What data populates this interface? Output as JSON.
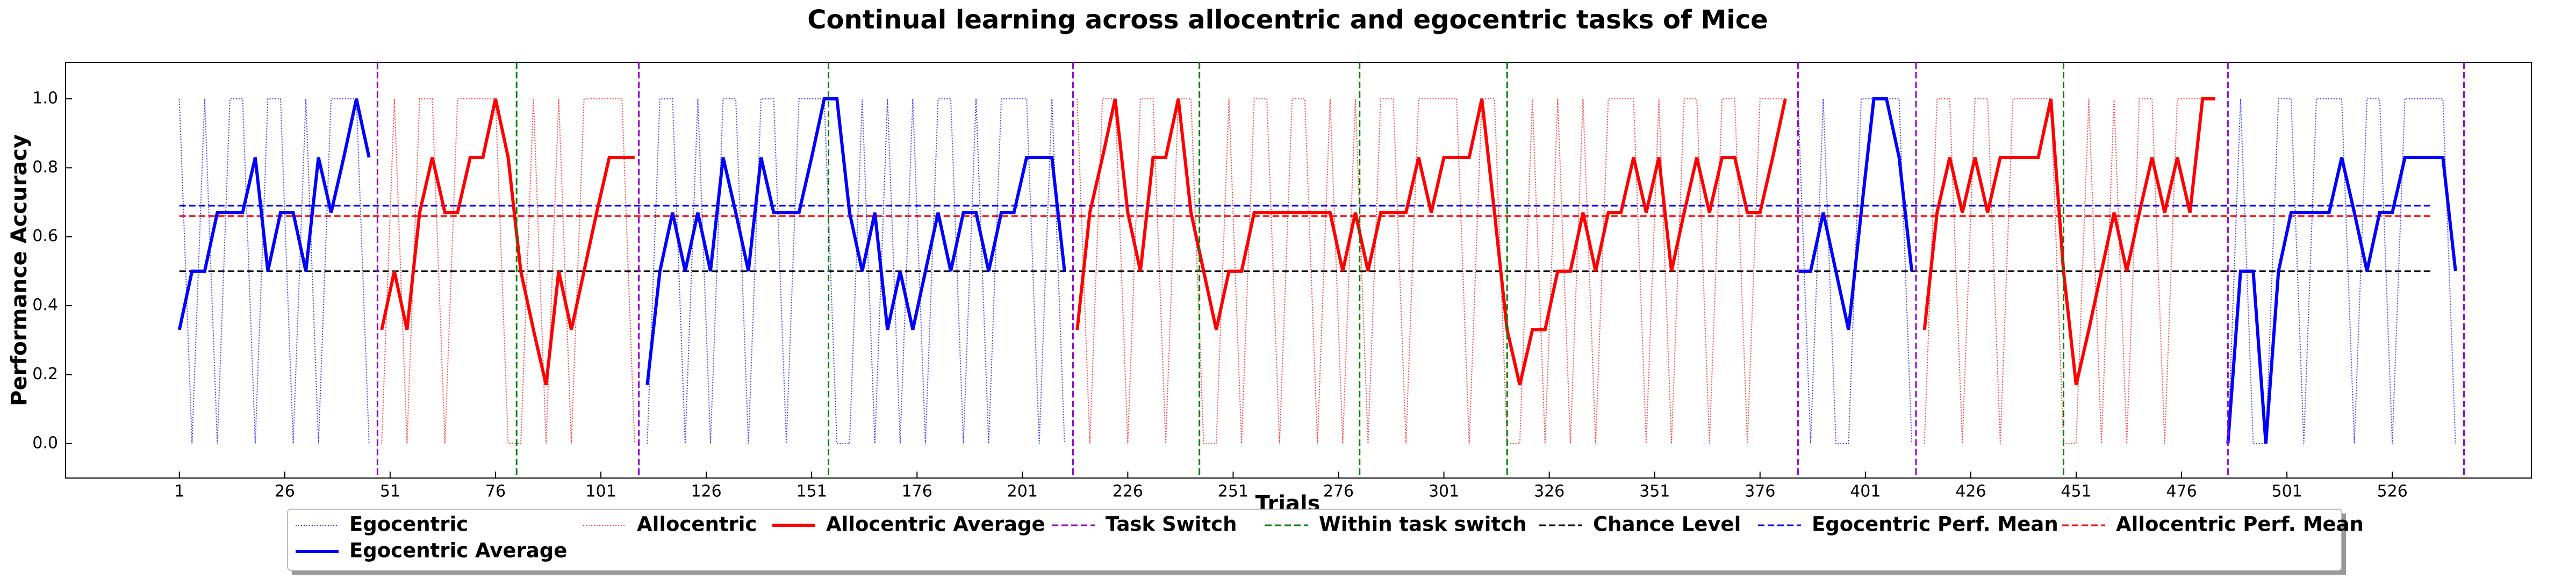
{
  "chart_data": {
    "type": "line",
    "title": "Continual learning across allocentric and egocentric tasks of Mice",
    "xlabel": "Trials",
    "ylabel": "Performance Accuracy",
    "xlim": [
      -26,
      559
    ],
    "ylim": [
      -0.1,
      1.106
    ],
    "xticks": [
      1,
      26,
      51,
      76,
      101,
      126,
      151,
      176,
      201,
      226,
      251,
      276,
      301,
      326,
      351,
      376,
      401,
      426,
      451,
      476,
      501,
      526
    ],
    "yticks": [
      {
        "value": 0,
        "label": "0.0"
      },
      {
        "value": 0.2,
        "label": "0.2"
      },
      {
        "value": 0.4,
        "label": "0.4"
      },
      {
        "value": 0.6,
        "label": "0.6"
      },
      {
        "value": 0.8,
        "label": "0.8"
      },
      {
        "value": 1,
        "label": "1.0"
      }
    ],
    "legend": "lower center",
    "x": [
      1,
      4,
      7,
      10,
      13,
      16,
      19,
      22,
      25,
      28,
      31,
      34,
      37,
      40,
      43,
      46,
      49,
      52,
      55,
      58,
      61,
      64,
      67,
      70,
      73,
      76,
      79,
      82,
      85,
      88,
      91,
      94,
      97,
      100,
      103,
      106,
      109,
      112,
      115,
      118,
      121,
      124,
      127,
      130,
      133,
      136,
      139,
      142,
      145,
      148,
      151,
      154,
      157,
      160,
      163,
      166,
      169,
      172,
      175,
      178,
      181,
      184,
      187,
      190,
      193,
      196,
      199,
      202,
      205,
      208,
      211,
      214,
      217,
      220,
      223,
      226,
      229,
      232,
      235,
      238,
      241,
      244,
      247,
      250,
      253,
      256,
      259,
      262,
      265,
      268,
      271,
      274,
      277,
      280,
      283,
      286,
      289,
      292,
      295,
      298,
      301,
      304,
      307,
      310,
      313,
      316,
      319,
      322,
      325,
      328,
      331,
      334,
      337,
      340,
      343,
      346,
      349,
      352,
      355,
      358,
      361,
      364,
      367,
      370,
      373,
      376,
      379,
      382,
      385,
      388,
      391,
      394,
      397,
      400,
      403,
      406,
      409,
      412,
      415,
      418,
      421,
      424,
      427,
      430,
      433,
      436,
      439,
      442,
      445,
      448,
      451,
      454,
      457,
      460,
      463,
      466,
      469,
      472,
      475,
      478,
      481,
      484,
      487,
      490,
      493,
      496,
      499,
      502,
      505,
      508,
      511,
      514,
      517,
      520,
      523,
      526,
      529,
      532,
      535,
      538,
      541
    ],
    "series": [
      {
        "name": "Egocentric",
        "color": "#0000ff",
        "style": "dotted",
        "values": [
          1,
          0,
          1,
          0,
          1,
          1,
          0,
          1,
          1,
          0,
          1,
          0,
          1,
          1,
          1,
          0,
          null,
          null,
          null,
          null,
          null,
          null,
          null,
          null,
          null,
          null,
          null,
          null,
          null,
          null,
          null,
          null,
          null,
          null,
          null,
          null,
          null,
          0,
          1,
          1,
          0,
          1,
          0,
          1,
          1,
          0,
          1,
          1,
          0,
          1,
          1,
          1,
          0,
          0,
          1,
          0,
          1,
          0,
          1,
          0,
          1,
          1,
          0,
          1,
          0,
          1,
          1,
          1,
          0,
          1,
          0,
          null,
          null,
          null,
          null,
          null,
          null,
          null,
          null,
          null,
          null,
          null,
          null,
          null,
          null,
          null,
          null,
          null,
          null,
          null,
          null,
          null,
          null,
          null,
          null,
          null,
          null,
          null,
          null,
          null,
          null,
          null,
          null,
          null,
          null,
          null,
          null,
          null,
          null,
          null,
          null,
          null,
          null,
          null,
          null,
          null,
          null,
          null,
          null,
          null,
          null,
          null,
          null,
          null,
          null,
          null,
          null,
          null,
          1,
          0,
          1,
          0,
          0,
          1,
          1,
          1,
          1,
          0,
          null,
          null,
          null,
          null,
          null,
          null,
          null,
          null,
          null,
          null,
          null,
          null,
          null,
          null,
          null,
          null,
          null,
          null,
          null,
          null,
          null,
          null,
          null,
          null,
          0,
          1,
          0,
          0,
          1,
          1,
          0,
          1,
          1,
          1,
          0,
          1,
          1,
          0,
          1,
          1,
          1,
          1,
          0
        ]
      },
      {
        "name": "Egocentric Average",
        "color": "#0000ff",
        "style": "solid",
        "values": [
          0.33,
          0.5,
          0.5,
          0.67,
          0.67,
          0.67,
          0.83,
          0.5,
          0.67,
          0.67,
          0.5,
          0.83,
          0.67,
          0.83,
          1.0,
          0.83,
          null,
          null,
          null,
          null,
          null,
          null,
          null,
          null,
          null,
          null,
          null,
          null,
          null,
          null,
          null,
          null,
          null,
          null,
          null,
          null,
          null,
          0.17,
          0.5,
          0.67,
          0.5,
          0.67,
          0.5,
          0.83,
          0.67,
          0.5,
          0.83,
          0.67,
          0.67,
          0.67,
          0.83,
          1.0,
          1.0,
          0.67,
          0.5,
          0.67,
          0.33,
          0.5,
          0.33,
          0.5,
          0.67,
          0.5,
          0.67,
          0.67,
          0.5,
          0.67,
          0.67,
          0.83,
          0.83,
          0.83,
          0.5,
          null,
          null,
          null,
          null,
          null,
          null,
          null,
          null,
          null,
          null,
          null,
          null,
          null,
          null,
          null,
          null,
          null,
          null,
          null,
          null,
          null,
          null,
          null,
          null,
          null,
          null,
          null,
          null,
          null,
          null,
          null,
          null,
          null,
          null,
          null,
          null,
          null,
          null,
          null,
          null,
          null,
          null,
          null,
          null,
          null,
          null,
          null,
          null,
          null,
          null,
          null,
          null,
          null,
          null,
          null,
          null,
          null,
          0.5,
          0.5,
          0.67,
          0.5,
          0.33,
          0.67,
          1.0,
          1.0,
          0.83,
          0.5,
          null,
          null,
          null,
          null,
          null,
          null,
          null,
          null,
          null,
          null,
          null,
          null,
          null,
          null,
          null,
          null,
          null,
          null,
          null,
          null,
          null,
          null,
          null,
          null,
          0.0,
          0.5,
          0.5,
          0.0,
          0.5,
          0.67,
          0.67,
          0.67,
          0.67,
          0.83,
          0.67,
          0.5,
          0.67,
          0.67,
          0.83,
          0.83,
          0.83,
          0.83,
          0.5
        ]
      },
      {
        "name": "Allocentric",
        "color": "#ff0000",
        "style": "dotted",
        "values": [
          null,
          null,
          null,
          null,
          null,
          null,
          null,
          null,
          null,
          null,
          null,
          null,
          null,
          null,
          null,
          null,
          0,
          1,
          0,
          1,
          1,
          0,
          1,
          1,
          1,
          1,
          0,
          0,
          1,
          0,
          1,
          0,
          1,
          1,
          1,
          1,
          0,
          null,
          null,
          null,
          null,
          null,
          null,
          null,
          null,
          null,
          null,
          null,
          null,
          null,
          null,
          null,
          null,
          null,
          null,
          null,
          null,
          null,
          null,
          null,
          null,
          null,
          null,
          null,
          null,
          null,
          null,
          null,
          null,
          null,
          null,
          1,
          0,
          1,
          1,
          0,
          1,
          1,
          0,
          1,
          1,
          0,
          0,
          1,
          0,
          1,
          1,
          0,
          1,
          1,
          0,
          1,
          0,
          1,
          0,
          1,
          1,
          0,
          1,
          1,
          1,
          1,
          0,
          1,
          1,
          0,
          0,
          1,
          0,
          1,
          0,
          1,
          0,
          1,
          1,
          1,
          0,
          1,
          0,
          1,
          1,
          0,
          1,
          1,
          0,
          1,
          1,
          1,
          null,
          null,
          null,
          null,
          null,
          null,
          null,
          null,
          null,
          null,
          0,
          1,
          1,
          0,
          1,
          1,
          0,
          1,
          1,
          1,
          1,
          0,
          0,
          1,
          0,
          1,
          0,
          1,
          1,
          0,
          1,
          1,
          1,
          1,
          null,
          null,
          null,
          null,
          null,
          null,
          null,
          null,
          null,
          null,
          null,
          null,
          null,
          null,
          null,
          null,
          null,
          null,
          null
        ]
      },
      {
        "name": "Allocentric Average",
        "color": "#ff0000",
        "style": "solid",
        "values": [
          null,
          null,
          null,
          null,
          null,
          null,
          null,
          null,
          null,
          null,
          null,
          null,
          null,
          null,
          null,
          null,
          0.33,
          0.5,
          0.33,
          0.67,
          0.83,
          0.67,
          0.67,
          0.83,
          0.83,
          1.0,
          0.83,
          0.5,
          0.33,
          0.17,
          0.5,
          0.33,
          0.5,
          0.67,
          0.83,
          0.83,
          0.83,
          null,
          null,
          null,
          null,
          null,
          null,
          null,
          null,
          null,
          null,
          null,
          null,
          null,
          null,
          null,
          null,
          null,
          null,
          null,
          null,
          null,
          null,
          null,
          null,
          null,
          null,
          null,
          null,
          null,
          null,
          null,
          null,
          null,
          null,
          0.33,
          0.67,
          0.83,
          1.0,
          0.67,
          0.5,
          0.83,
          0.83,
          1.0,
          0.67,
          0.5,
          0.33,
          0.5,
          0.5,
          0.67,
          0.67,
          0.67,
          0.67,
          0.67,
          0.67,
          0.67,
          0.5,
          0.67,
          0.5,
          0.67,
          0.67,
          0.67,
          0.83,
          0.67,
          0.83,
          0.83,
          0.83,
          1.0,
          0.67,
          0.33,
          0.17,
          0.33,
          0.33,
          0.5,
          0.5,
          0.67,
          0.5,
          0.67,
          0.67,
          0.83,
          0.67,
          0.83,
          0.5,
          0.67,
          0.83,
          0.67,
          0.83,
          0.83,
          0.67,
          0.67,
          0.83,
          1.0,
          null,
          null,
          null,
          null,
          null,
          null,
          null,
          null,
          null,
          null,
          0.33,
          0.67,
          0.83,
          0.67,
          0.83,
          0.67,
          0.83,
          0.83,
          0.83,
          0.83,
          1.0,
          0.5,
          0.17,
          0.33,
          0.5,
          0.67,
          0.5,
          0.67,
          0.83,
          0.67,
          0.83,
          0.67,
          1.0,
          1.0,
          null,
          null,
          null,
          null,
          null,
          null,
          null,
          null,
          null,
          null,
          null,
          null,
          null,
          null,
          null,
          null,
          null,
          null,
          null
        ]
      }
    ],
    "vlines": [
      {
        "name": "Task Switch",
        "color": "#9400d3",
        "positions": [
          48,
          110,
          213,
          385,
          413,
          487,
          543
        ]
      },
      {
        "name": "Within task switch",
        "color": "#008000",
        "positions": [
          81,
          155,
          243,
          281,
          316,
          448
        ]
      }
    ],
    "hlines": [
      {
        "name": "Chance Level",
        "color": "#000000",
        "value": 0.5,
        "xrange": [
          1,
          535
        ]
      },
      {
        "name": "Egocentric Perf. Mean",
        "color": "#0000ff",
        "value": 0.69,
        "xrange": [
          1,
          535
        ]
      },
      {
        "name": "Allocentric Perf. Mean",
        "color": "#ff0000",
        "value": 0.66,
        "xrange": [
          1,
          535
        ]
      }
    ]
  }
}
